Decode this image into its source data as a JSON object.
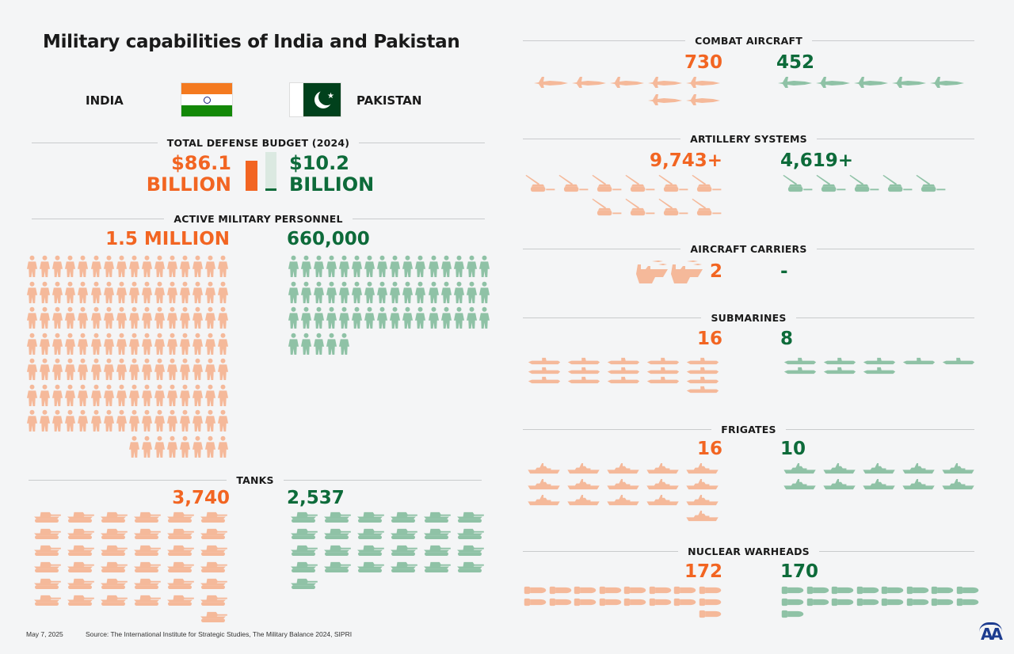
{
  "title": "Military capabilities of India and Pakistan",
  "countries": {
    "india": "INDIA",
    "pakistan": "PAKISTAN"
  },
  "colors": {
    "india": "#f26522",
    "india_light": "#f5b99a",
    "pakistan": "#0d6b3a",
    "pakistan_light": "#8fc2a6",
    "india_flag_saffron": "#f47a20",
    "india_flag_green": "#138808",
    "pakistan_flag_green": "#01411c",
    "logo": "#1d3c8f"
  },
  "budget": {
    "header": "TOTAL DEFENSE BUDGET (2024)",
    "india_amount": "$86.1",
    "india_unit": "BILLION",
    "pakistan_amount": "$10.2",
    "pakistan_unit": "BILLION"
  },
  "chart_data": {
    "type": "table",
    "title": "Military capabilities of India and Pakistan",
    "budget_billion_usd": {
      "india": 86.1,
      "pakistan": 10.2
    },
    "categories": [
      {
        "key": "personnel",
        "header": "ACTIVE MILITARY PERSONNEL",
        "icon": "soldier-icon",
        "india": "1.5 MILLION",
        "pakistan": "660,000",
        "india_icons": 120,
        "pakistan_icons": 53
      },
      {
        "key": "tanks",
        "header": "TANKS",
        "icon": "tank-icon",
        "india": "3,740",
        "pakistan": "2,537",
        "india_icons": 37,
        "pakistan_icons": 25
      },
      {
        "key": "aircraft",
        "header": "COMBAT AIRCRAFT",
        "icon": "jet-icon",
        "india": "730",
        "pakistan": "452",
        "india_icons": 7,
        "pakistan_icons": 5
      },
      {
        "key": "artillery",
        "header": "ARTILLERY SYSTEMS",
        "icon": "artillery-icon",
        "india": "9,743+",
        "pakistan": "4,619+",
        "india_icons": 10,
        "pakistan_icons": 5
      },
      {
        "key": "carriers",
        "header": "AIRCRAFT CARRIERS",
        "icon": "carrier-icon",
        "india": "2",
        "pakistan": "-",
        "india_icons": 2,
        "pakistan_icons": 0
      },
      {
        "key": "submarines",
        "header": "SUBMARINES",
        "icon": "submarine-icon",
        "india": "16",
        "pakistan": "8",
        "india_icons": 16,
        "pakistan_icons": 8
      },
      {
        "key": "frigates",
        "header": "FRIGATES",
        "icon": "frigate-icon",
        "india": "16",
        "pakistan": "10",
        "india_icons": 16,
        "pakistan_icons": 10
      },
      {
        "key": "nuclear",
        "header": "NUCLEAR WARHEADS",
        "icon": "warhead-icon",
        "india": "172",
        "pakistan": "170",
        "india_icons": 17,
        "pakistan_icons": 17
      }
    ]
  },
  "footer": {
    "date": "May 7, 2025",
    "source": "Source: The International Institute for Strategic Studies, The Military Balance 2024, SIPRI",
    "logo": "AA"
  }
}
